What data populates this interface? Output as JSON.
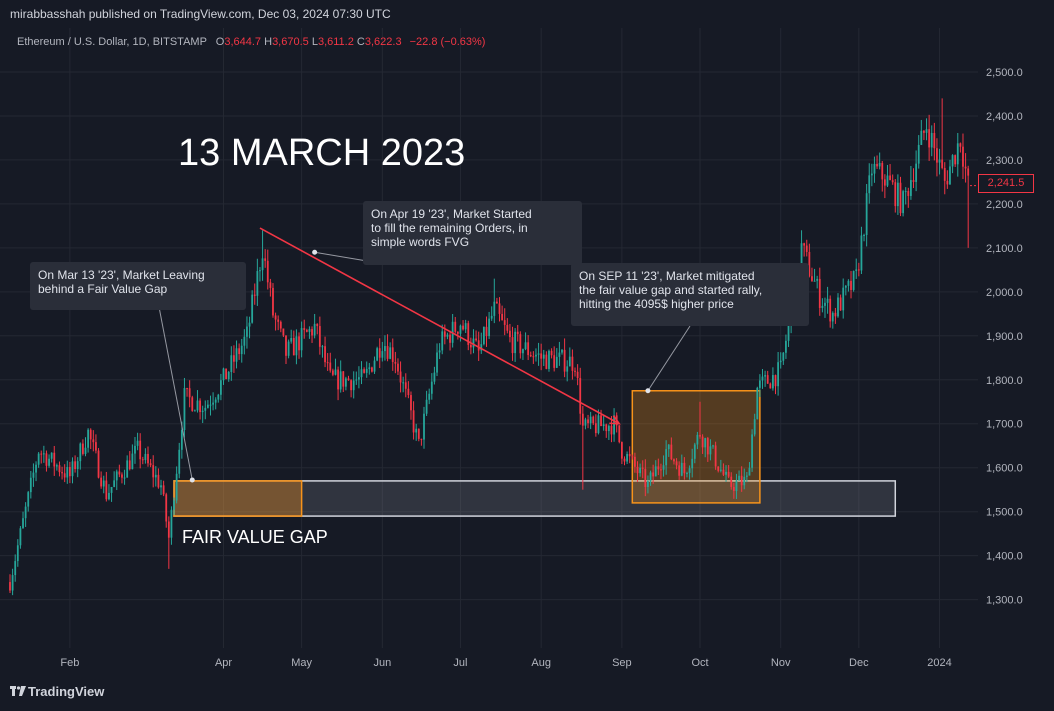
{
  "header": {
    "publisher": "mirabbasshah published on TradingView.com, Dec 03, 2024 07:30 UTC",
    "symbol": "Ethereum / U.S. Dollar, 1D, BITSTAMP",
    "open_label": "O",
    "open": "3,644.7",
    "high_label": "H",
    "high": "3,670.5",
    "low_label": "L",
    "low": "3,611.2",
    "close_label": "C",
    "close": "3,622.3",
    "change": "−22.8 (−0.63%)"
  },
  "annotations": {
    "title": "13 MARCH 2023",
    "callout_1": "On Mar 13 '23', Market Leaving\nbehind a Fair Value Gap",
    "callout_2": "On Apr 19 '23', Market Started\nto fill the remaining Orders, in\nsimple words FVG",
    "callout_3": "On SEP 11 '23', Market mitigated\nthe fair value gap and started rally,\nhitting the 4095$ higher price",
    "fvg_label": "FAIR VALUE GAP",
    "current_price_tag": "2,241.5"
  },
  "footer": {
    "logo_text": "TradingView",
    "logo_icon": "tradingview-logo-icon"
  },
  "colors": {
    "background": "#161a25",
    "up": "#26a69a",
    "down": "#f23645",
    "grid": "#242833",
    "fvg_box": "#d1d4dc",
    "highlight": "#f7931a",
    "trendline": "#f23645"
  },
  "chart_data": {
    "type": "candlestick",
    "title": "Ethereum / U.S. Dollar, 1D, BITSTAMP",
    "x_ticks": [
      "Feb",
      "Apr",
      "May",
      "Jun",
      "Jul",
      "Aug",
      "Sep",
      "Oct",
      "Nov",
      "Dec",
      "2024"
    ],
    "x_tick_dates": [
      "2023-02-01",
      "2023-04-01",
      "2023-05-01",
      "2023-06-01",
      "2023-07-01",
      "2023-08-01",
      "2023-09-01",
      "2023-10-01",
      "2023-11-01",
      "2023-12-01",
      "2024-01-01"
    ],
    "x_range": [
      "2023-01-09",
      "2024-01-15"
    ],
    "y_ticks": [
      "1,300.0",
      "1,400.0",
      "1,500.0",
      "1,600.0",
      "1,700.0",
      "1,800.0",
      "1,900.0",
      "2,000.0",
      "2,100.0",
      "2,200.0",
      "2,300.0",
      "2,400.0",
      "2,500.0"
    ],
    "ylim": [
      1190,
      2600
    ],
    "grid": true,
    "current_price": 2241.5,
    "anchors": [
      [
        "2023-01-09",
        1340
      ],
      [
        "2023-01-20",
        1640
      ],
      [
        "2023-02-01",
        1580
      ],
      [
        "2023-02-08",
        1680
      ],
      [
        "2023-02-15",
        1540
      ],
      [
        "2023-02-27",
        1640
      ],
      [
        "2023-03-08",
        1560
      ],
      [
        "2023-03-11",
        1440
      ],
      [
        "2023-03-14",
        1600
      ],
      [
        "2023-03-17",
        1760
      ],
      [
        "2023-03-25",
        1740
      ],
      [
        "2023-04-01",
        1800
      ],
      [
        "2023-04-10",
        1900
      ],
      [
        "2023-04-16",
        2100
      ],
      [
        "2023-04-20",
        1950
      ],
      [
        "2023-04-25",
        1860
      ],
      [
        "2023-05-06",
        1920
      ],
      [
        "2023-05-12",
        1800
      ],
      [
        "2023-05-25",
        1800
      ],
      [
        "2023-06-01",
        1890
      ],
      [
        "2023-06-06",
        1850
      ],
      [
        "2023-06-12",
        1720
      ],
      [
        "2023-06-15",
        1650
      ],
      [
        "2023-06-23",
        1880
      ],
      [
        "2023-07-01",
        1930
      ],
      [
        "2023-07-08",
        1860
      ],
      [
        "2023-07-14",
        1960
      ],
      [
        "2023-07-20",
        1890
      ],
      [
        "2023-08-01",
        1850
      ],
      [
        "2023-08-14",
        1840
      ],
      [
        "2023-08-17",
        1690
      ],
      [
        "2023-08-29",
        1700
      ],
      [
        "2023-09-01",
        1640
      ],
      [
        "2023-09-11",
        1560
      ],
      [
        "2023-09-18",
        1640
      ],
      [
        "2023-09-25",
        1590
      ],
      [
        "2023-10-01",
        1680
      ],
      [
        "2023-10-06",
        1630
      ],
      [
        "2023-10-12",
        1560
      ],
      [
        "2023-10-19",
        1570
      ],
      [
        "2023-10-23",
        1780
      ],
      [
        "2023-11-01",
        1820
      ],
      [
        "2023-11-09",
        2100
      ],
      [
        "2023-11-16",
        1990
      ],
      [
        "2023-11-21",
        1950
      ],
      [
        "2023-11-30",
        2030
      ],
      [
        "2023-12-06",
        2280
      ],
      [
        "2023-12-11",
        2260
      ],
      [
        "2023-12-18",
        2200
      ],
      [
        "2023-12-27",
        2380
      ],
      [
        "2024-01-03",
        2250
      ],
      [
        "2024-01-09",
        2350
      ],
      [
        "2024-01-12",
        2241.5
      ]
    ],
    "spikes": [
      [
        "2023-03-11",
        "low",
        1370
      ],
      [
        "2023-04-16",
        "high",
        2140
      ],
      [
        "2023-07-14",
        "high",
        2030
      ],
      [
        "2023-08-17",
        "low",
        1550
      ],
      [
        "2023-10-01",
        "high",
        1750
      ],
      [
        "2023-11-09",
        "high",
        2140
      ],
      [
        "2024-01-02",
        "high",
        2440
      ],
      [
        "2024-01-12",
        "low",
        2100
      ]
    ],
    "fair_value_gap": {
      "from": "2023-03-13",
      "to": "2023-12-15",
      "low": 1490,
      "high": 1570
    },
    "fvg_origin_box": {
      "from": "2023-03-13",
      "to": "2023-05-01",
      "low": 1490,
      "high": 1570
    },
    "mitigation_box": {
      "from": "2023-09-05",
      "to": "2023-10-24",
      "low": 1520,
      "high": 1775
    },
    "trendline": {
      "from": [
        "2023-04-15",
        2145
      ],
      "to": [
        "2023-08-31",
        1700
      ]
    },
    "callout_leaders": [
      {
        "callout": "callout_1",
        "to": [
          "2023-03-20",
          1572
        ]
      },
      {
        "callout": "callout_2",
        "to": [
          "2023-05-06",
          2090
        ]
      },
      {
        "callout": "callout_3",
        "to": [
          "2023-09-11",
          1775
        ]
      }
    ]
  }
}
